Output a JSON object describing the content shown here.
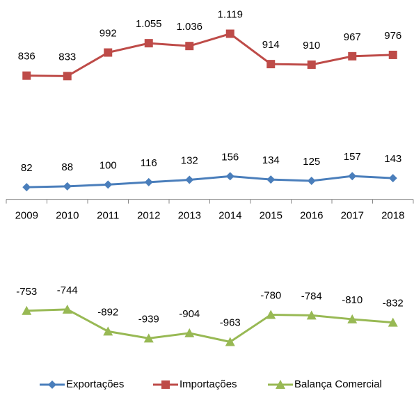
{
  "chart_data": {
    "type": "line",
    "categories": [
      "2009",
      "2010",
      "2011",
      "2012",
      "2013",
      "2014",
      "2015",
      "2016",
      "2017",
      "2018"
    ],
    "series": [
      {
        "name": "Exportações",
        "color": "#4a7ebb",
        "marker": "diamond",
        "values": [
          82,
          88,
          100,
          116,
          132,
          156,
          134,
          125,
          157,
          143
        ]
      },
      {
        "name": "Importações",
        "color": "#be4b48",
        "marker": "square",
        "values": [
          836,
          833,
          992,
          1055,
          1036,
          1119,
          914,
          910,
          967,
          976
        ],
        "value_labels": [
          "836",
          "833",
          "992",
          "1.055",
          "1.036",
          "1.119",
          "914",
          "910",
          "967",
          "976"
        ]
      },
      {
        "name": "Balança Comercial",
        "color": "#98b954",
        "marker": "triangle",
        "values": [
          -753,
          -744,
          -892,
          -939,
          -904,
          -963,
          -780,
          -784,
          -810,
          -832
        ]
      }
    ],
    "ylim": [
      -1050,
      1300
    ],
    "legend": "bottom"
  }
}
